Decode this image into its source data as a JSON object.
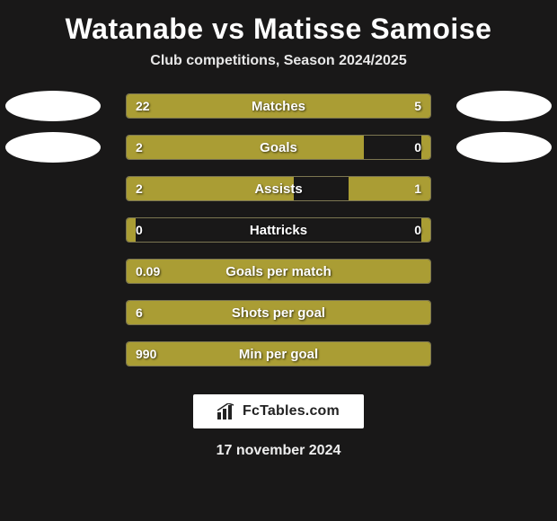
{
  "background_color": "#191818",
  "title": "Watanabe vs Matisse Samoise",
  "title_fontsize": 32,
  "subtitle": "Club competitions, Season 2024/2025",
  "subtitle_fontsize": 16,
  "bar_fill_color": "#aa9d34",
  "bar_border_color": "#7c7651",
  "text_shadow": "1px 1px 2px rgba(0,0,0,0.7)",
  "value_fontsize": 14,
  "label_fontsize": 15,
  "badge_color": "#ffffff",
  "rows": [
    {
      "label": "Matches",
      "left": "22",
      "right": "5",
      "left_pct": 78,
      "right_pct": 22,
      "show_badges": true
    },
    {
      "label": "Goals",
      "left": "2",
      "right": "0",
      "left_pct": 78,
      "right_pct": 3,
      "show_badges": true
    },
    {
      "label": "Assists",
      "left": "2",
      "right": "1",
      "left_pct": 55,
      "right_pct": 27,
      "show_badges": false
    },
    {
      "label": "Hattricks",
      "left": "0",
      "right": "0",
      "left_pct": 3,
      "right_pct": 3,
      "show_badges": false
    },
    {
      "label": "Goals per match",
      "left": "0.09",
      "right": "",
      "left_pct": 100,
      "right_pct": 0,
      "show_badges": false
    },
    {
      "label": "Shots per goal",
      "left": "6",
      "right": "",
      "left_pct": 100,
      "right_pct": 0,
      "show_badges": false
    },
    {
      "label": "Min per goal",
      "left": "990",
      "right": "",
      "left_pct": 100,
      "right_pct": 0,
      "show_badges": false
    }
  ],
  "logo_text": "FcTables.com",
  "date": "17 november 2024"
}
